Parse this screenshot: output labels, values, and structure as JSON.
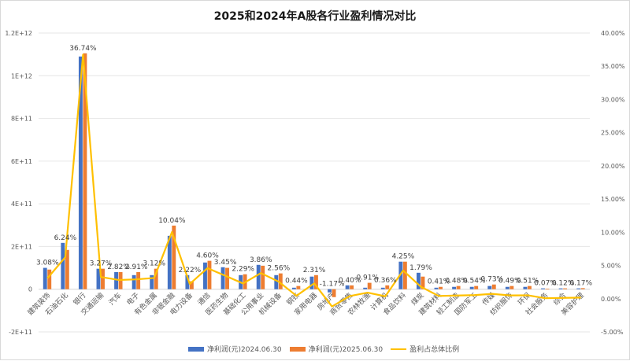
{
  "chart_data": {
    "type": "bar",
    "title": "2025和2024年A股各行业盈利情况对比",
    "xlabel": "",
    "ylabel": "",
    "ylim": [
      -200000000000,
      1200000000000
    ],
    "y2lim": [
      -0.05,
      0.4
    ],
    "grid": true,
    "legend_position": "bottom",
    "y_ticks": [
      "1.2E+12",
      "1E+12",
      "8E+11",
      "6E+11",
      "4E+11",
      "2E+11",
      "0",
      "-2E+11"
    ],
    "y2_ticks": [
      "40.00%",
      "35.00%",
      "30.00%",
      "25.00%",
      "20.00%",
      "15.00%",
      "10.00%",
      "5.00%",
      "0.00%",
      "-5.00%"
    ],
    "categories": [
      "建筑装饰",
      "石油石化",
      "银行",
      "交通运输",
      "汽车",
      "电子",
      "有色金属",
      "非银金融",
      "电力设备",
      "通信",
      "医药生物",
      "基础化工",
      "公用事业",
      "机械设备",
      "钢铁",
      "家用电器",
      "房地产",
      "商贸零售",
      "农林牧渔",
      "计算机",
      "食品饮料",
      "煤炭",
      "建筑材料",
      "轻工制造",
      "国防军工",
      "传媒",
      "纺织服饰",
      "环保",
      "社会服务",
      "综合",
      "美容护理"
    ],
    "series": [
      {
        "name": "净利润(元)2024.06.30",
        "type": "bar",
        "axis": "left",
        "color": "#4472C4",
        "values": [
          100000000000,
          217000000000,
          1090000000000,
          96000000000,
          80000000000,
          66000000000,
          66000000000,
          250000000000,
          66000000000,
          125000000000,
          103000000000,
          66000000000,
          114000000000,
          66000000000,
          7000000000,
          59000000000,
          -15000000000,
          18000000000,
          7000000000,
          7000000000,
          129000000000,
          77000000000,
          7000000000,
          11000000000,
          11000000000,
          15000000000,
          11000000000,
          11000000000,
          4000000000,
          4000000000,
          4000000000
        ]
      },
      {
        "name": "净利润(元)2025.06.30",
        "type": "bar",
        "axis": "left",
        "color": "#ED7D31",
        "values": [
          92000000000,
          184000000000,
          1105000000000,
          96000000000,
          80000000000,
          80000000000,
          96000000000,
          298000000000,
          37000000000,
          133000000000,
          100000000000,
          70000000000,
          110000000000,
          74000000000,
          15000000000,
          66000000000,
          -37000000000,
          18000000000,
          30000000000,
          18000000000,
          129000000000,
          59000000000,
          11000000000,
          15000000000,
          15000000000,
          22000000000,
          15000000000,
          15000000000,
          2000000000,
          4000000000,
          5000000000
        ]
      },
      {
        "name": "盈利占总体比例",
        "type": "line",
        "axis": "right",
        "color": "#FFC000",
        "values": [
          0.0308,
          0.0624,
          0.3674,
          0.0327,
          0.0282,
          0.0291,
          0.0312,
          0.1004,
          0.0222,
          0.046,
          0.0345,
          0.0229,
          0.0386,
          0.0256,
          0.0044,
          0.0231,
          -0.0117,
          0.004,
          0.0091,
          0.0036,
          0.0425,
          0.0179,
          0.0041,
          0.0048,
          0.0054,
          0.0073,
          0.0049,
          0.0051,
          0.0007,
          0.0012,
          0.0017
        ],
        "labels": [
          "3.08%",
          "6.24%",
          "36.74%",
          "3.27%",
          "2.82%",
          "2.91%",
          "3.12%",
          "10.04%",
          "2.22%",
          "4.60%",
          "3.45%",
          "2.29%",
          "3.86%",
          "2.56%",
          "0.44%",
          "2.31%",
          "-1.17%",
          "0.40%",
          "0.91%",
          "0.36%",
          "4.25%",
          "1.79%",
          "0.41%",
          "0.48%",
          "0.54%",
          "0.73%",
          "0.49%",
          "0.51%",
          "0.07%",
          "0.12%",
          "0.17%"
        ]
      }
    ]
  },
  "legend": {
    "items": [
      {
        "label": "净利润(元)2024.06.30",
        "color": "#4472C4",
        "kind": "bar"
      },
      {
        "label": "净利润(元)2025.06.30",
        "color": "#ED7D31",
        "kind": "bar"
      },
      {
        "label": "盈利占总体比例",
        "color": "#FFC000",
        "kind": "line"
      }
    ]
  }
}
